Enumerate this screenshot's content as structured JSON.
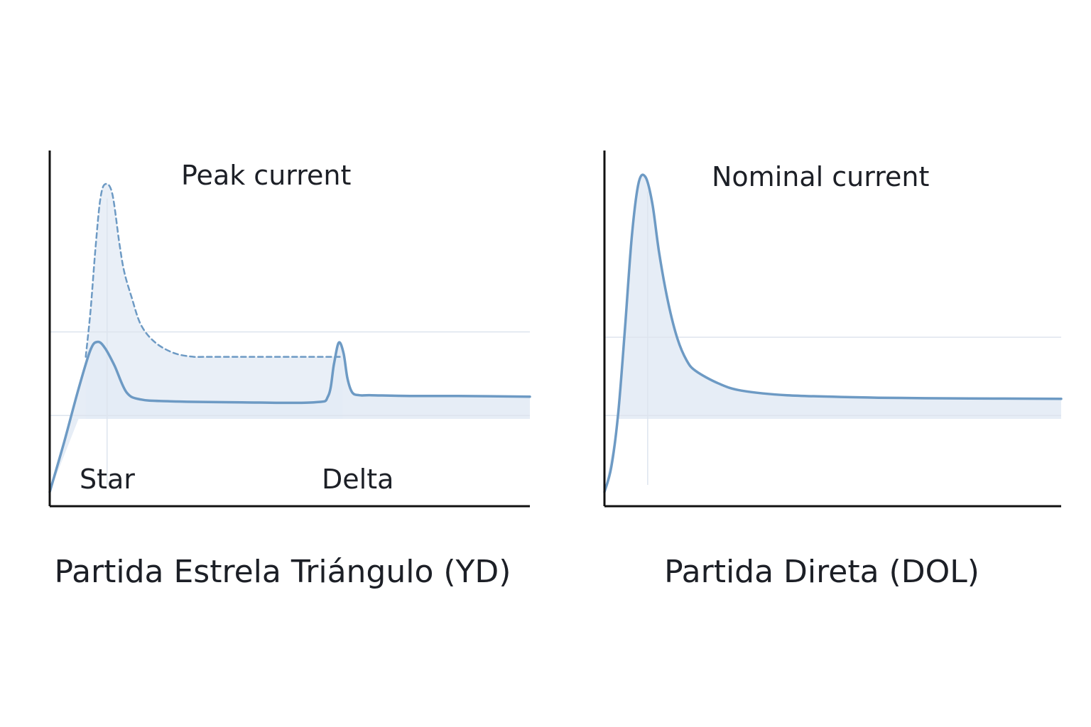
{
  "chart_data": [
    {
      "type": "line",
      "caption": "Partida Estrela Triángulo (YD)",
      "annotations": {
        "peak": "Peak current",
        "star": "Star",
        "delta": "Delta"
      },
      "xlim": [
        0,
        10
      ],
      "ylim": [
        0,
        10
      ],
      "reference_lines": [
        2.55,
        4.9
      ],
      "series": [
        {
          "style": "solid",
          "x": [
            0,
            0.3,
            0.6,
            0.85,
            1.0,
            1.15,
            1.35,
            1.6,
            1.9,
            2.5,
            4,
            5.5,
            5.8,
            5.92,
            6.02,
            6.12,
            6.2,
            6.3,
            6.45,
            6.7,
            7.5,
            8.5,
            10
          ],
          "y": [
            0.4,
            1.8,
            3.3,
            4.4,
            4.62,
            4.45,
            3.95,
            3.2,
            3.0,
            2.95,
            2.92,
            2.92,
            3.1,
            4.0,
            4.6,
            4.3,
            3.6,
            3.2,
            3.12,
            3.12,
            3.1,
            3.1,
            3.08
          ]
        },
        {
          "style": "dashed",
          "x": [
            0.75,
            0.85,
            0.95,
            1.05,
            1.15,
            1.3,
            1.45,
            1.55,
            1.7,
            1.9,
            2.2,
            2.6,
            3.0,
            3.2,
            4.2,
            5.5,
            6.1
          ],
          "y": [
            4.2,
            5.5,
            7.2,
            8.6,
            9.05,
            8.8,
            7.4,
            6.6,
            5.9,
            5.1,
            4.6,
            4.3,
            4.2,
            4.2,
            4.2,
            4.2,
            4.2
          ]
        }
      ],
      "color": "#6d9ac4",
      "fill_color": "#e3ebf5"
    },
    {
      "type": "line",
      "caption": "Partida Direta (DOL)",
      "annotations": {
        "nominal": "Nominal current"
      },
      "xlim": [
        0,
        10
      ],
      "ylim": [
        0,
        10
      ],
      "reference_lines": [
        2.55,
        4.75
      ],
      "series": [
        {
          "style": "solid",
          "x": [
            0,
            0.15,
            0.3,
            0.45,
            0.6,
            0.75,
            0.9,
            1.05,
            1.2,
            1.4,
            1.6,
            1.8,
            2.0,
            2.5,
            3.0,
            4.0,
            6.0,
            8.0,
            10
          ],
          "y": [
            0.4,
            1.1,
            2.6,
            5.0,
            7.6,
            9.1,
            9.25,
            8.5,
            7.1,
            5.7,
            4.7,
            4.1,
            3.8,
            3.45,
            3.25,
            3.12,
            3.05,
            3.03,
            3.02
          ]
        }
      ],
      "color": "#6d9ac4",
      "fill_color": "#e3ebf5"
    }
  ]
}
